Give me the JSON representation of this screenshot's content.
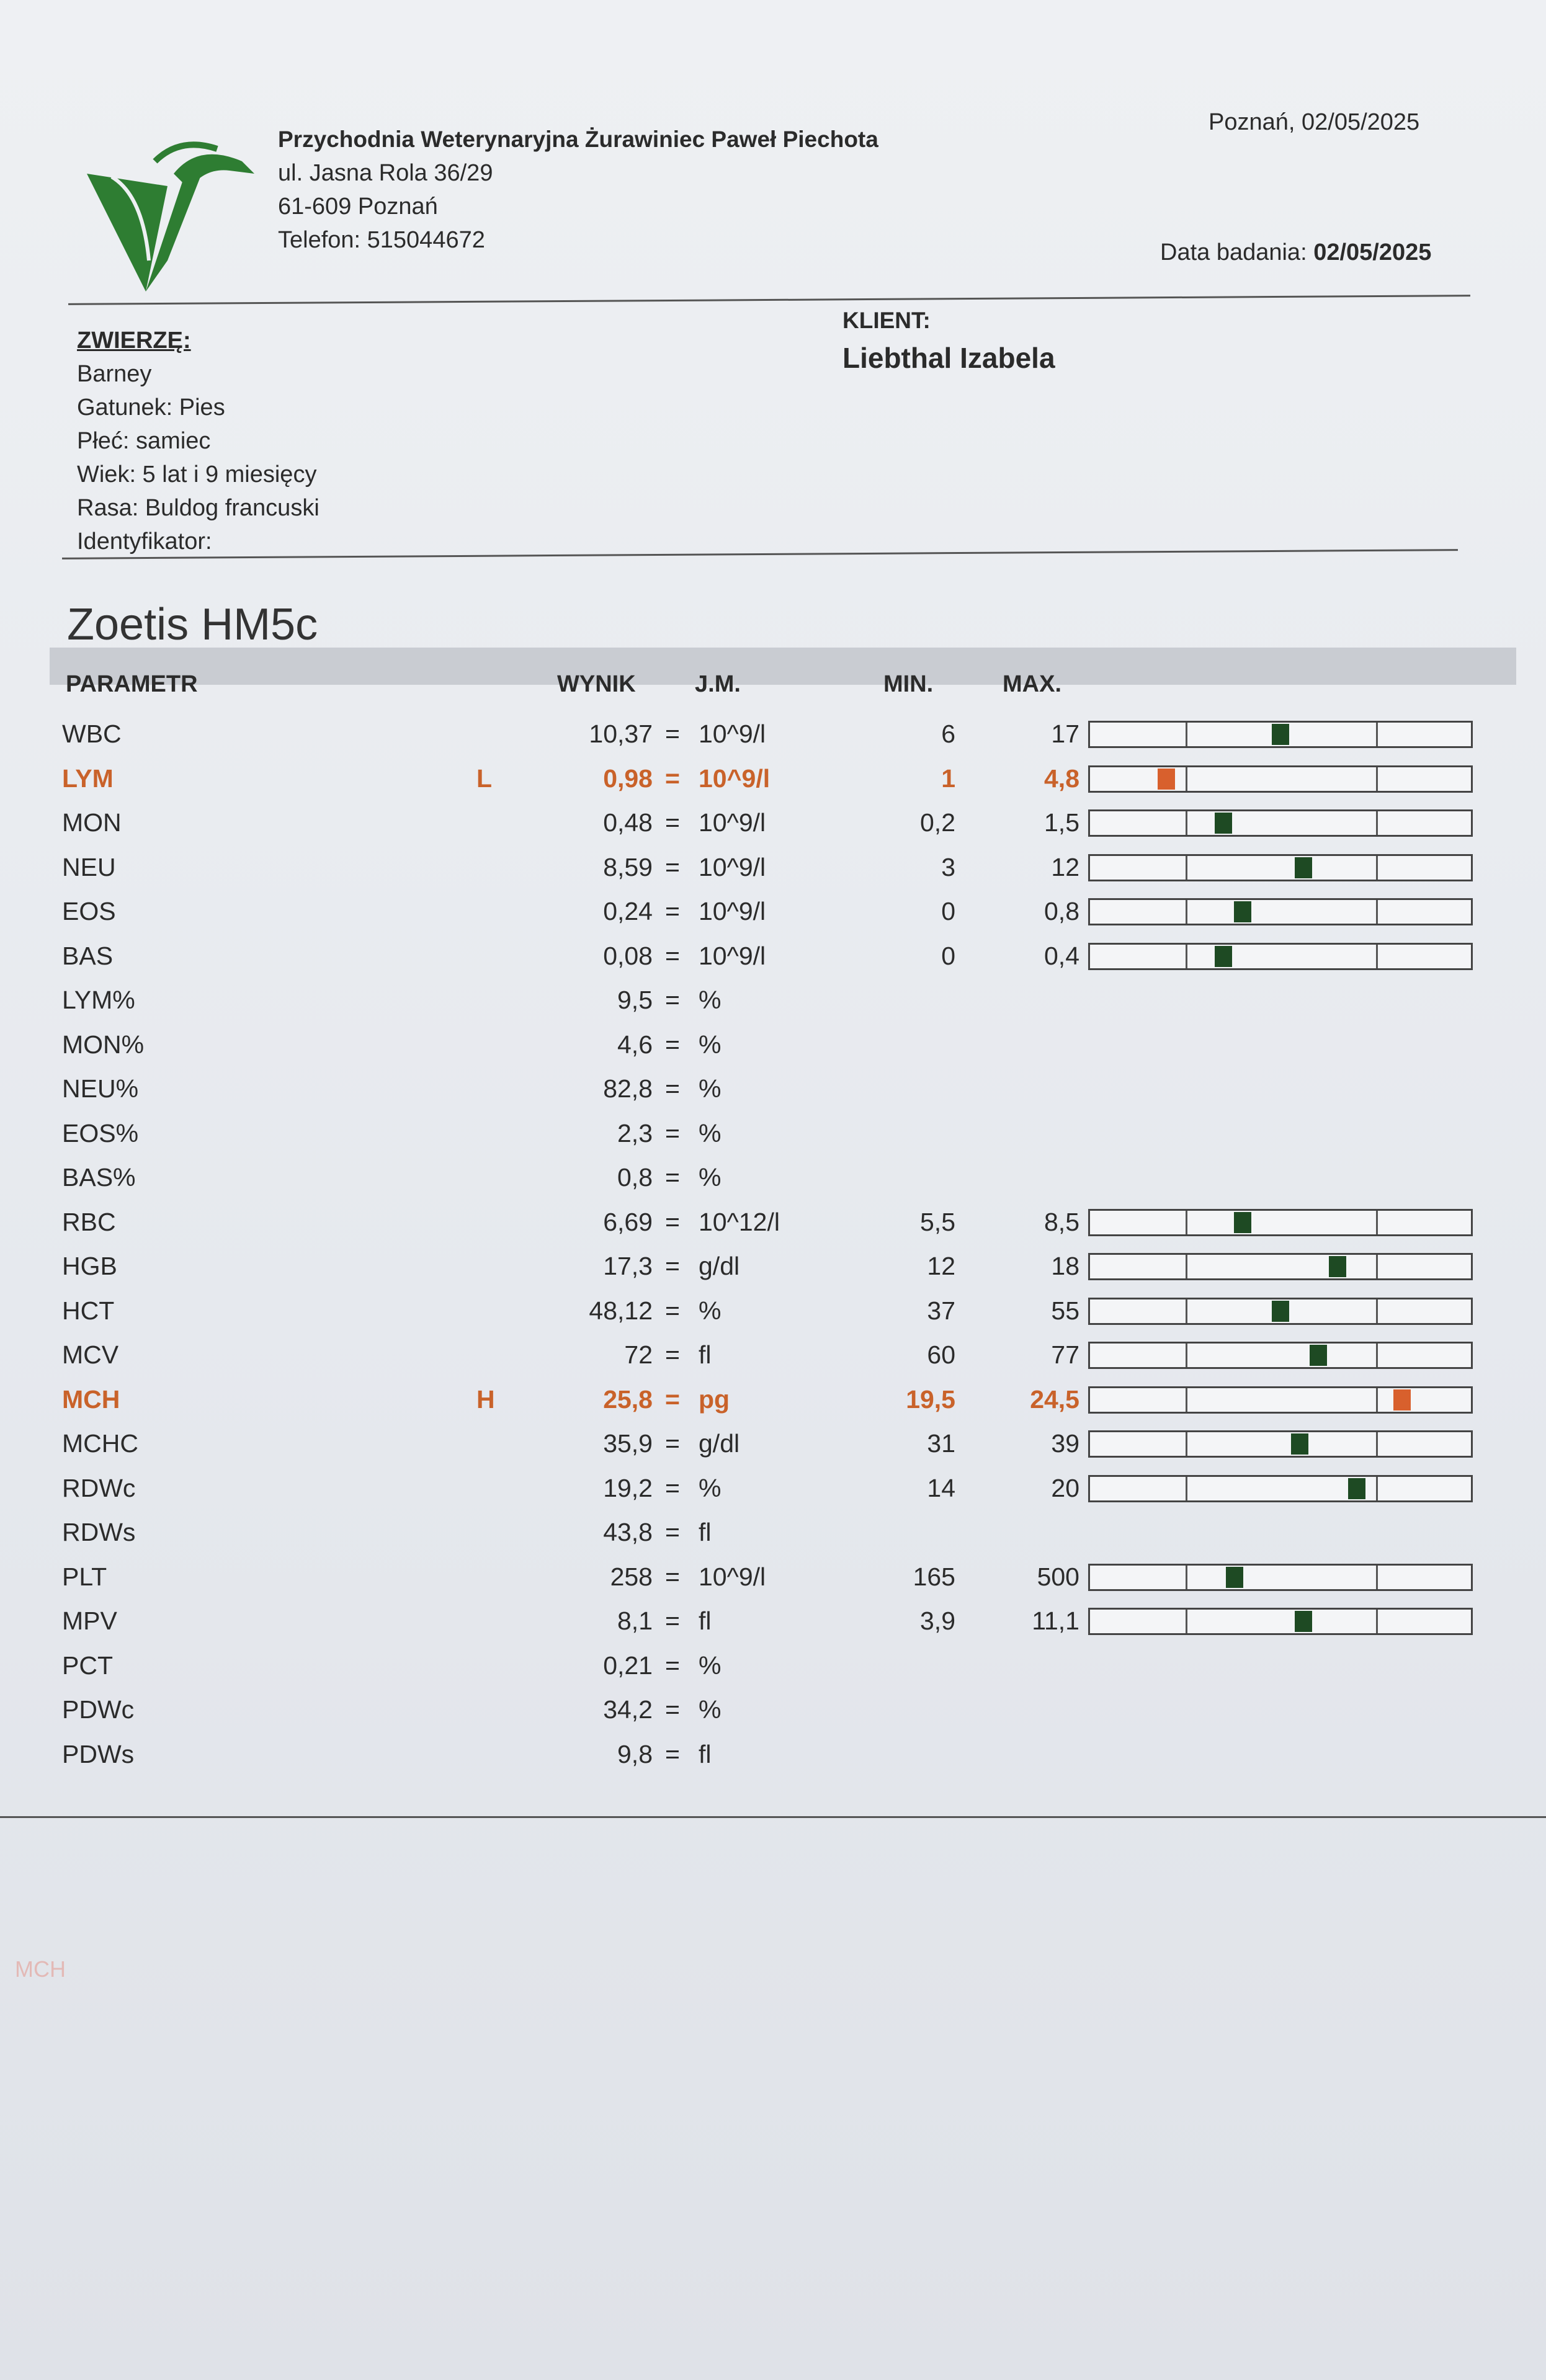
{
  "clinic": {
    "name": "Przychodnia Weterynaryjna Żurawiniec Paweł Piechota",
    "address": "ul. Jasna Rola 36/29",
    "city": "61-609 Poznań",
    "phone": "Telefon: 515044672",
    "logo_icon": "crane-bird-logo-icon",
    "logo_color": "#2e7d32"
  },
  "place_date": "Poznań, 02/05/2025",
  "exam_date_label": "Data badania:",
  "exam_date": "02/05/2025",
  "animal": {
    "heading": "ZWIERZĘ:",
    "name": "Barney",
    "species": "Gatunek: Pies",
    "sex": "Płeć: samiec",
    "age": "Wiek: 5 lat i 9 miesięcy",
    "breed": "Rasa: Buldog francuski",
    "identifier": "Identyfikator:"
  },
  "client": {
    "heading": "KLIENT:",
    "name": "Liebthal Izabela"
  },
  "device": "Zoetis HM5c",
  "table_headers": {
    "param": "PARAMETR",
    "result": "WYNIK",
    "unit": "J.M.",
    "min": "MIN.",
    "max": "MAX."
  },
  "colors": {
    "normal_marker": "#1e4a23",
    "abnormal": "#d8602d"
  },
  "rows": [
    {
      "param": "WBC",
      "flag": "",
      "value": "10,37",
      "unit": "10^9/l",
      "min": "6",
      "max": "17",
      "level": 0.5,
      "abnormal": false
    },
    {
      "param": "LYM",
      "flag": "L",
      "value": "0,98",
      "unit": "10^9/l",
      "min": "1",
      "max": "4,8",
      "level": 0.2,
      "abnormal": true
    },
    {
      "param": "MON",
      "flag": "",
      "value": "0,48",
      "unit": "10^9/l",
      "min": "0,2",
      "max": "1,5",
      "level": 0.35,
      "abnormal": false
    },
    {
      "param": "NEU",
      "flag": "",
      "value": "8,59",
      "unit": "10^9/l",
      "min": "3",
      "max": "12",
      "level": 0.56,
      "abnormal": false
    },
    {
      "param": "EOS",
      "flag": "",
      "value": "0,24",
      "unit": "10^9/l",
      "min": "0",
      "max": "0,8",
      "level": 0.4,
      "abnormal": false
    },
    {
      "param": "BAS",
      "flag": "",
      "value": "0,08",
      "unit": "10^9/l",
      "min": "0",
      "max": "0,4",
      "level": 0.35,
      "abnormal": false
    },
    {
      "param": "LYM%",
      "flag": "",
      "value": "9,5",
      "unit": "%",
      "min": "",
      "max": "",
      "level": null,
      "abnormal": false
    },
    {
      "param": "MON%",
      "flag": "",
      "value": "4,6",
      "unit": "%",
      "min": "",
      "max": "",
      "level": null,
      "abnormal": false
    },
    {
      "param": "NEU%",
      "flag": "",
      "value": "82,8",
      "unit": "%",
      "min": "",
      "max": "",
      "level": null,
      "abnormal": false
    },
    {
      "param": "EOS%",
      "flag": "",
      "value": "2,3",
      "unit": "%",
      "min": "",
      "max": "",
      "level": null,
      "abnormal": false
    },
    {
      "param": "BAS%",
      "flag": "",
      "value": "0,8",
      "unit": "%",
      "min": "",
      "max": "",
      "level": null,
      "abnormal": false
    },
    {
      "param": "RBC",
      "flag": "",
      "value": "6,69",
      "unit": "10^12/l",
      "min": "5,5",
      "max": "8,5",
      "level": 0.4,
      "abnormal": false
    },
    {
      "param": "HGB",
      "flag": "",
      "value": "17,3",
      "unit": "g/dl",
      "min": "12",
      "max": "18",
      "level": 0.65,
      "abnormal": false
    },
    {
      "param": "HCT",
      "flag": "",
      "value": "48,12",
      "unit": "%",
      "min": "37",
      "max": "55",
      "level": 0.5,
      "abnormal": false
    },
    {
      "param": "MCV",
      "flag": "",
      "value": "72",
      "unit": "fl",
      "min": "60",
      "max": "77",
      "level": 0.6,
      "abnormal": false
    },
    {
      "param": "MCH",
      "flag": "H",
      "value": "25,8",
      "unit": "pg",
      "min": "19,5",
      "max": "24,5",
      "level": 0.82,
      "abnormal": true
    },
    {
      "param": "MCHC",
      "flag": "",
      "value": "35,9",
      "unit": "g/dl",
      "min": "31",
      "max": "39",
      "level": 0.55,
      "abnormal": false
    },
    {
      "param": "RDWc",
      "flag": "",
      "value": "19,2",
      "unit": "%",
      "min": "14",
      "max": "20",
      "level": 0.7,
      "abnormal": false
    },
    {
      "param": "RDWs",
      "flag": "",
      "value": "43,8",
      "unit": "fl",
      "min": "",
      "max": "",
      "level": null,
      "abnormal": false
    },
    {
      "param": "PLT",
      "flag": "",
      "value": "258",
      "unit": "10^9/l",
      "min": "165",
      "max": "500",
      "level": 0.38,
      "abnormal": false
    },
    {
      "param": "MPV",
      "flag": "",
      "value": "8,1",
      "unit": "fl",
      "min": "3,9",
      "max": "11,1",
      "level": 0.56,
      "abnormal": false
    },
    {
      "param": "PCT",
      "flag": "",
      "value": "0,21",
      "unit": "%",
      "min": "",
      "max": "",
      "level": null,
      "abnormal": false
    },
    {
      "param": "PDWc",
      "flag": "",
      "value": "34,2",
      "unit": "%",
      "min": "",
      "max": "",
      "level": null,
      "abnormal": false
    },
    {
      "param": "PDWs",
      "flag": "",
      "value": "9,8",
      "unit": "fl",
      "min": "",
      "max": "",
      "level": null,
      "abnormal": false
    }
  ],
  "ghost_text": "MCH"
}
